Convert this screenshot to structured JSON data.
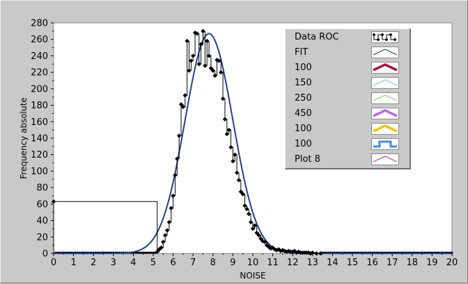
{
  "chart_data": {
    "type": "line",
    "xlabel": "NOISE",
    "ylabel": "Frequency absolute",
    "xlim": [
      0,
      20
    ],
    "ylim": [
      0,
      280
    ],
    "x_ticks": [
      0,
      1,
      2,
      3,
      4,
      5,
      6,
      7,
      8,
      9,
      10,
      11,
      12,
      13,
      14,
      15,
      16,
      17,
      18,
      19,
      20
    ],
    "y_ticks": [
      0,
      20,
      40,
      60,
      80,
      100,
      120,
      140,
      160,
      180,
      200,
      220,
      240,
      260,
      280
    ],
    "grid": false,
    "legend_position": "top-right",
    "series": [
      {
        "name": "Data ROC",
        "style": "step-markers",
        "color": "#000000",
        "x": [
          0,
          5.2,
          5.3,
          5.4,
          5.5,
          5.6,
          5.7,
          5.8,
          5.9,
          6.0,
          6.1,
          6.2,
          6.3,
          6.4,
          6.5,
          6.6,
          6.7,
          6.8,
          6.9,
          7.0,
          7.1,
          7.2,
          7.3,
          7.4,
          7.5,
          7.6,
          7.7,
          7.8,
          7.9,
          8.0,
          8.1,
          8.2,
          8.3,
          8.4,
          8.5,
          8.6,
          8.7,
          8.8,
          8.9,
          9.0,
          9.1,
          9.2,
          9.3,
          9.4,
          9.5,
          9.6,
          9.7,
          9.8,
          9.9,
          10.0,
          10.1,
          10.2,
          10.3,
          10.4,
          10.5,
          10.6,
          10.7,
          10.8,
          10.9,
          11.0,
          11.1,
          11.2,
          11.3,
          11.4,
          11.5,
          11.6,
          11.7,
          11.8,
          11.9,
          12.0,
          12.1,
          12.2,
          12.3,
          12.4,
          12.5,
          12.6,
          12.7,
          12.8,
          12.9,
          13.0,
          13.2,
          13.4
        ],
        "y": [
          63,
          2,
          5,
          7,
          14,
          22,
          28,
          38,
          55,
          70,
          95,
          115,
          143,
          181,
          178,
          192,
          258,
          222,
          234,
          240,
          268,
          267,
          230,
          254,
          270,
          228,
          258,
          240,
          225,
          222,
          216,
          235,
          234,
          220,
          188,
          163,
          145,
          150,
          129,
          112,
          120,
          98,
          89,
          75,
          72,
          58,
          54,
          48,
          38,
          30,
          34,
          25,
          22,
          18,
          15,
          14,
          10,
          8,
          6,
          7,
          5,
          4,
          5,
          3,
          4,
          3,
          2,
          3,
          2,
          2,
          3,
          1,
          2,
          1,
          1,
          1,
          1,
          1,
          0,
          1,
          0,
          0
        ]
      },
      {
        "name": "FIT",
        "style": "gaussian",
        "color": "#1f3f8f",
        "mean": 7.8,
        "sd": 1.2,
        "peak": 267
      }
    ],
    "legend": [
      {
        "name": "Data ROC",
        "swatch": "markers",
        "color": "#000000"
      },
      {
        "name": "FIT",
        "swatch": "zigzag",
        "color": "#1f3f8f"
      },
      {
        "name": "100",
        "swatch": "zigzag-thick",
        "color": "#b0103a"
      },
      {
        "name": "150",
        "swatch": "zigzag",
        "color": "#6cc4e8"
      },
      {
        "name": "250",
        "swatch": "zigzag",
        "color": "#93d06c"
      },
      {
        "name": "450",
        "swatch": "zigzag-thick",
        "color": "#bb66ee"
      },
      {
        "name": "100",
        "swatch": "zigzag-thick",
        "color": "#f5c400"
      },
      {
        "name": "100",
        "swatch": "square",
        "color": "#3a8fe8"
      },
      {
        "name": "Plot 8",
        "swatch": "zigzag",
        "color": "#c0389a"
      }
    ]
  }
}
